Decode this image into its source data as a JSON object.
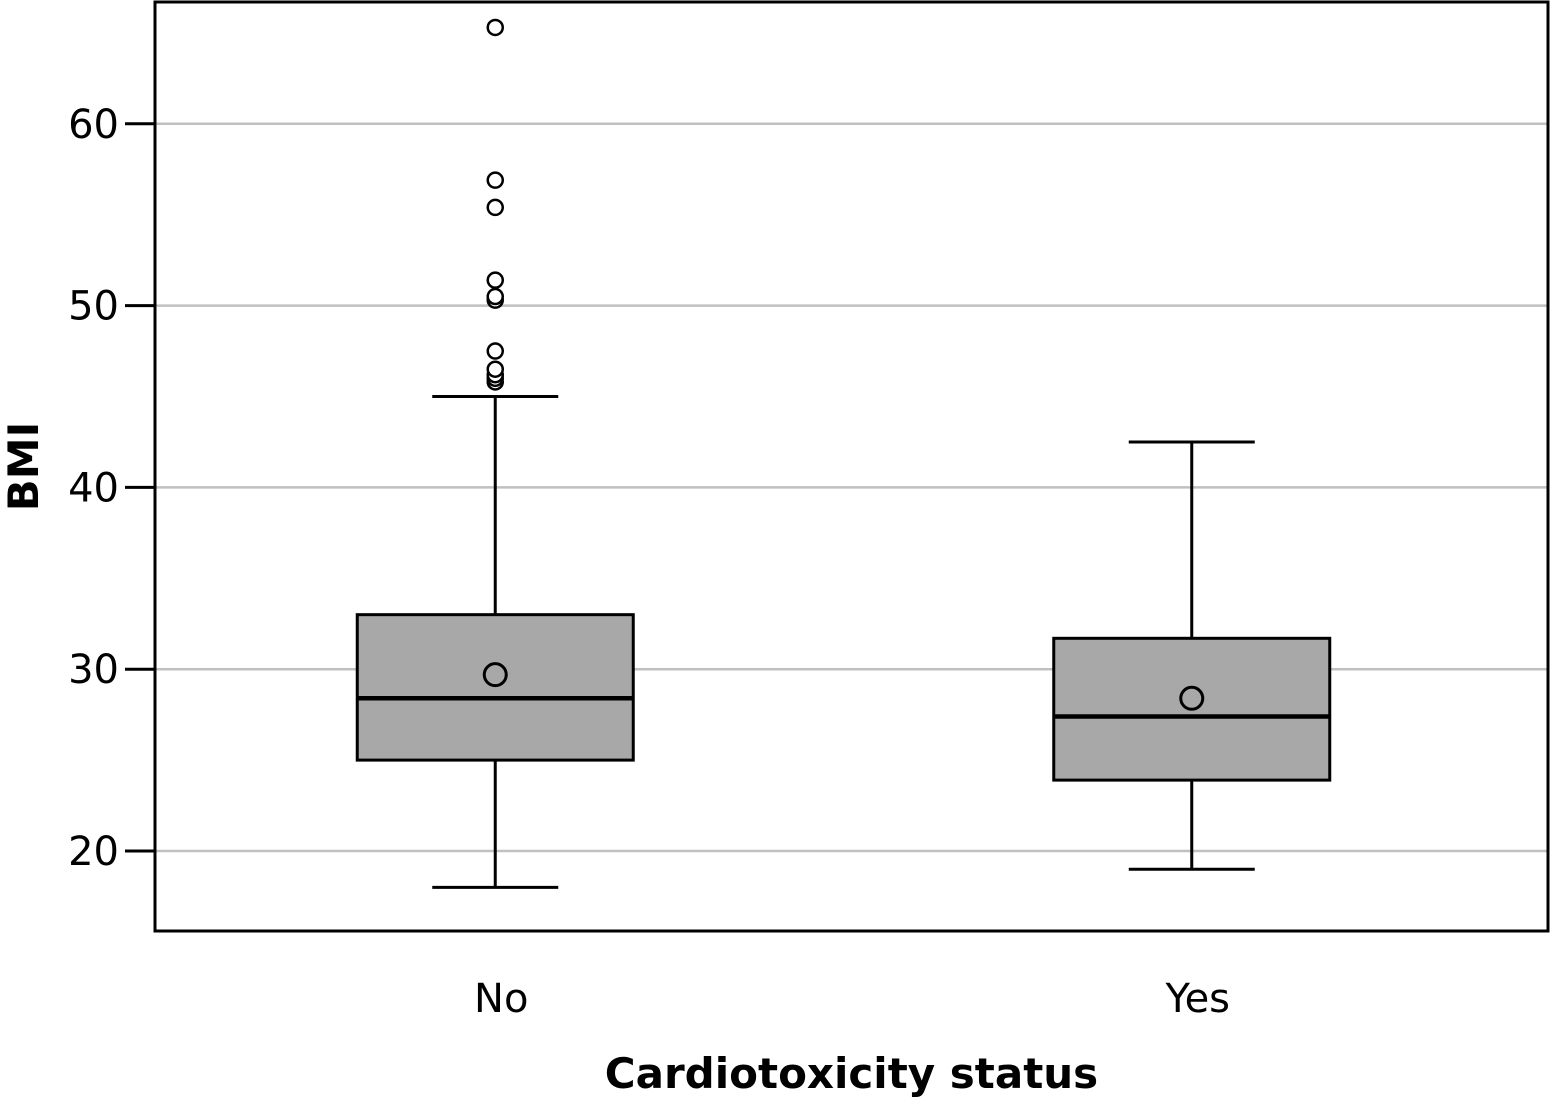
{
  "chart_data": {
    "type": "box",
    "xlabel": "Cardiotoxicity status",
    "ylabel": "BMI",
    "categories": [
      "No",
      "Yes"
    ],
    "yticks": [
      20,
      30,
      40,
      50,
      60
    ],
    "ylim": [
      15.6,
      66.7
    ],
    "grid": "horizontal",
    "boxes": [
      {
        "category": "No",
        "whisker_low": 18.0,
        "q1": 25.0,
        "median": 28.4,
        "q3": 33.0,
        "whisker_high": 45.0,
        "mean": 29.7,
        "outliers": [
          45.8,
          46.0,
          46.2,
          46.5,
          47.5,
          50.3,
          50.5,
          51.4,
          55.4,
          56.9,
          65.3
        ]
      },
      {
        "category": "Yes",
        "whisker_low": 19.0,
        "q1": 23.9,
        "median": 27.4,
        "q3": 31.7,
        "whisker_high": 42.5,
        "mean": 28.4,
        "outliers": []
      }
    ],
    "colors": {
      "box_fill": "#a8a8a8",
      "stroke": "#000000",
      "grid": "#c0c0c0"
    }
  }
}
